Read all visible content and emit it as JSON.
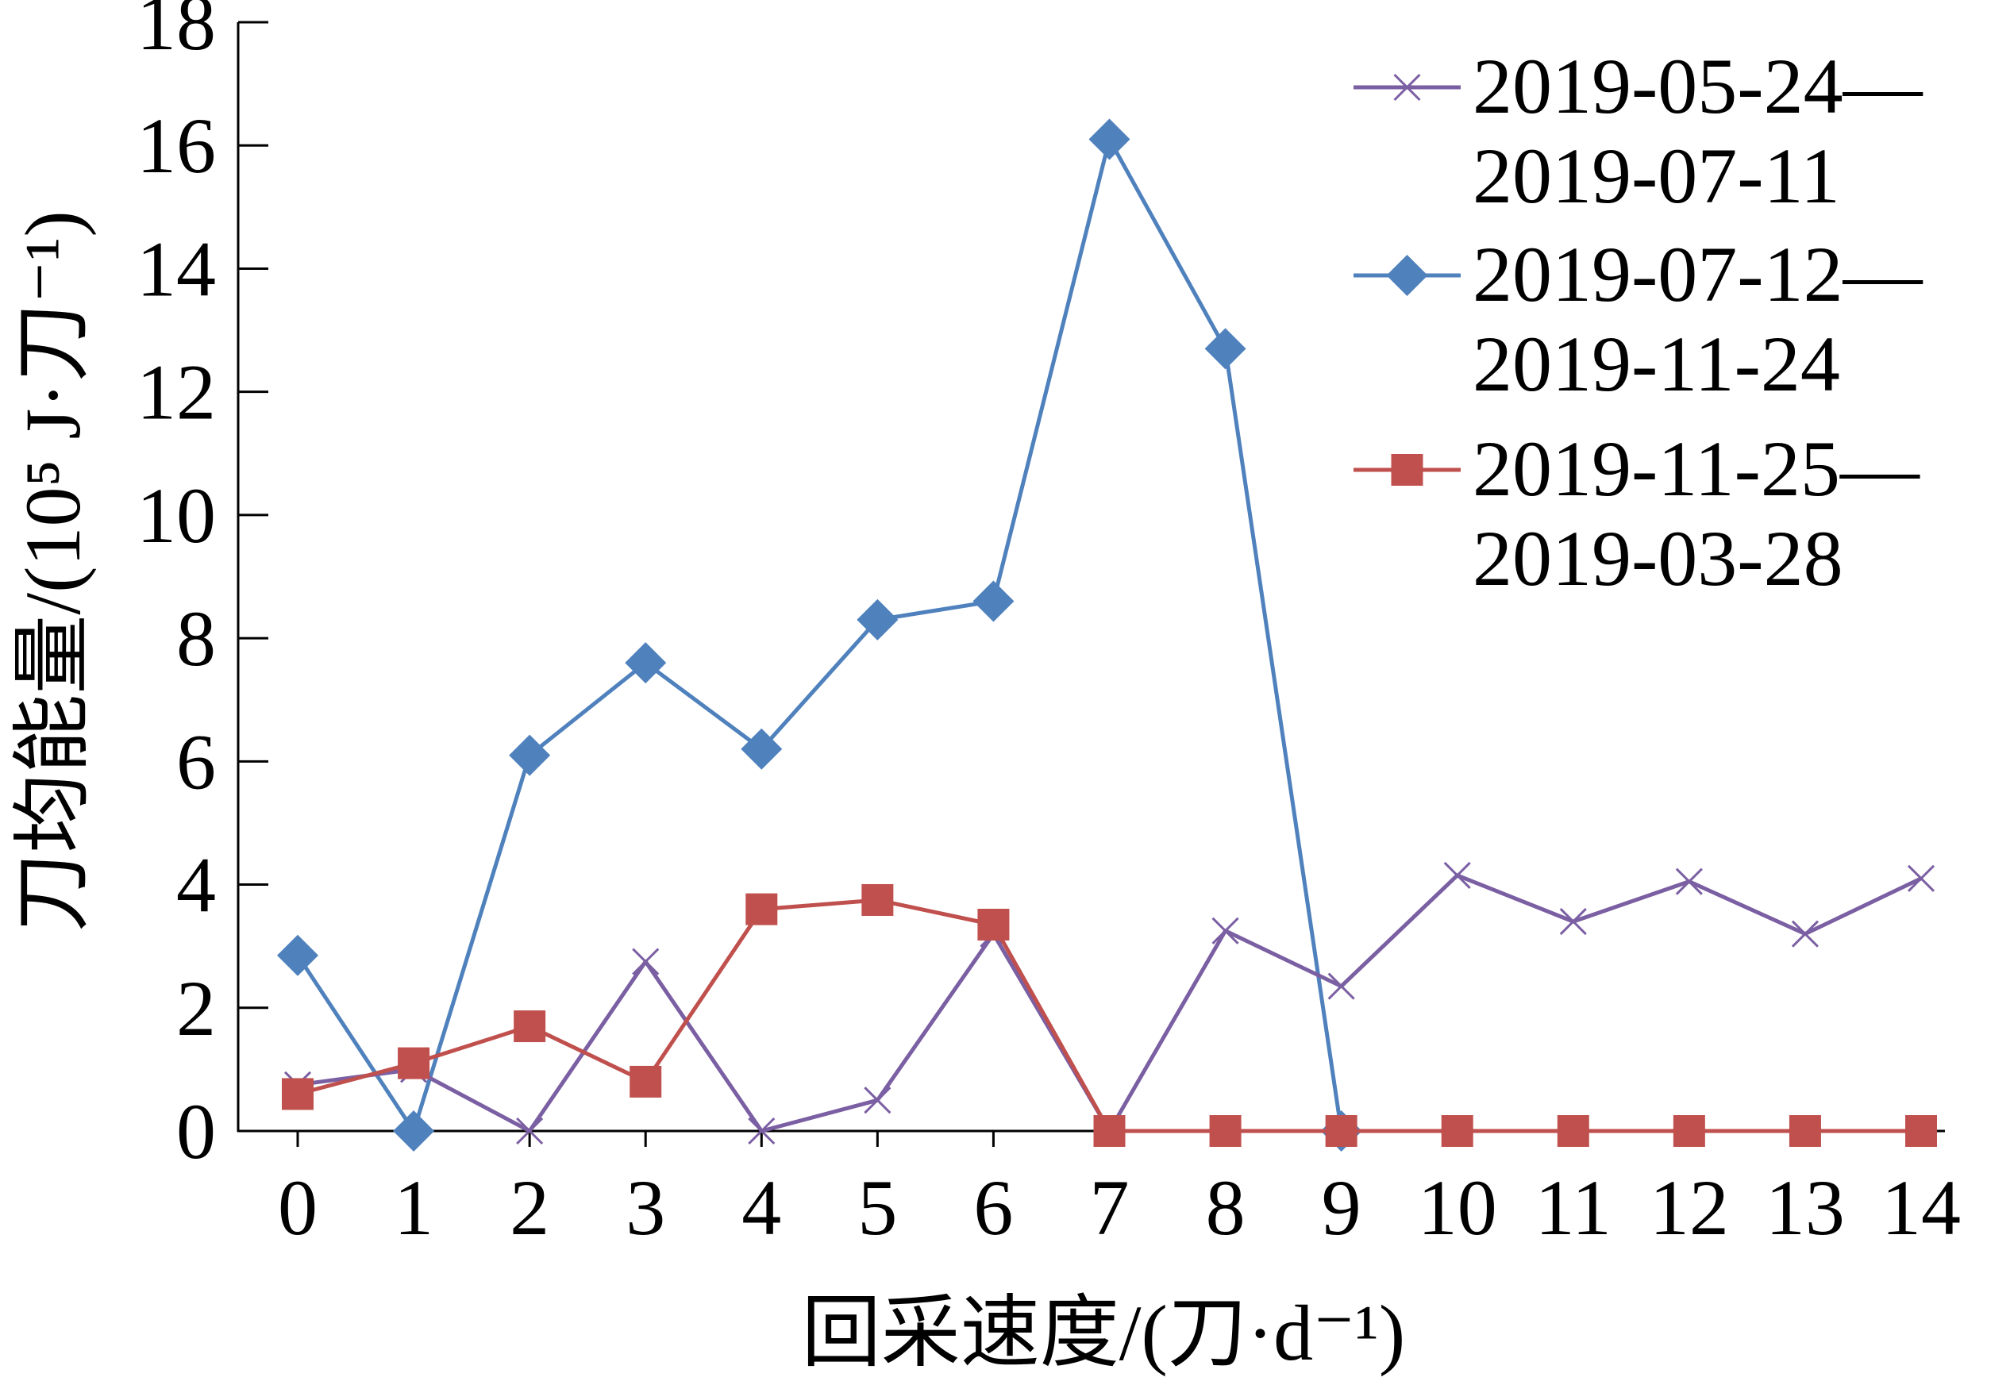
{
  "chart_data": {
    "type": "line",
    "xlabel": "回采速度/(刀·d⁻¹)",
    "ylabel": "刀均能量/(10⁵ J·刀⁻¹)",
    "x": [
      0,
      1,
      2,
      3,
      4,
      5,
      6,
      7,
      8,
      9,
      10,
      11,
      12,
      13,
      14
    ],
    "xlim": [
      0,
      14
    ],
    "ylim": [
      0,
      18
    ],
    "yticks": [
      0,
      2,
      4,
      6,
      8,
      10,
      12,
      14,
      16,
      18
    ],
    "grid": false,
    "legend_position": "top-right",
    "series": [
      {
        "name": "2019-05-24—2019-07-11",
        "legend_lines": [
          "2019-05-24—",
          "2019-07-11"
        ],
        "color": "#7B5FA3",
        "marker": "x",
        "x": [
          0,
          1,
          2,
          3,
          4,
          5,
          6,
          7,
          8,
          9,
          10,
          11,
          12,
          13,
          14
        ],
        "values": [
          0.75,
          1.0,
          0.0,
          2.75,
          0.0,
          0.5,
          3.2,
          0.0,
          3.25,
          2.35,
          4.15,
          3.4,
          4.05,
          3.2,
          4.1
        ]
      },
      {
        "name": "2019-07-12—2019-11-24",
        "legend_lines": [
          "2019-07-12—",
          "2019-11-24"
        ],
        "color": "#4F81BD",
        "marker": "diamond",
        "x": [
          0,
          1,
          2,
          3,
          4,
          5,
          6,
          7,
          8,
          9
        ],
        "values": [
          2.85,
          0.0,
          6.1,
          7.6,
          6.2,
          8.3,
          8.6,
          16.1,
          12.7,
          0.0
        ]
      },
      {
        "name": "2019-11-25—2019-03-28",
        "legend_lines": [
          "2019-11-25—",
          "2019-03-28"
        ],
        "color": "#C0504D",
        "marker": "square",
        "x": [
          0,
          1,
          2,
          3,
          4,
          5,
          6,
          7,
          8,
          9,
          10,
          11,
          12,
          13,
          14
        ],
        "values": [
          0.6,
          1.1,
          1.7,
          0.8,
          3.6,
          3.75,
          3.35,
          0.0,
          0.0,
          0.0,
          0.0,
          0.0,
          0.0,
          0.0,
          0.0
        ]
      }
    ]
  }
}
